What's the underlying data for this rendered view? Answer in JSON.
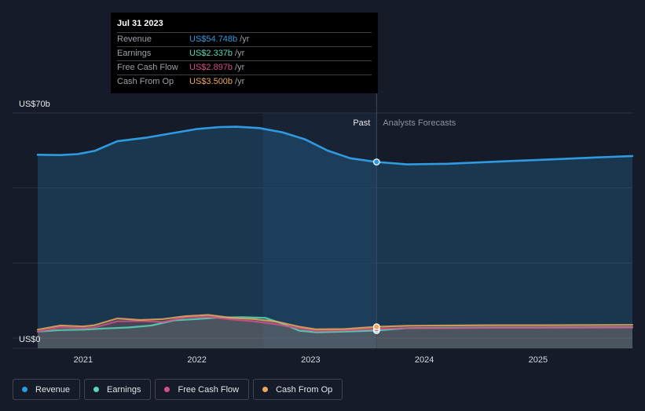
{
  "chart_data": {
    "type": "area",
    "ylabel_top": "US$70b",
    "ylabel_bottom": "US$0",
    "ylim": [
      0,
      70
    ],
    "xlim": [
      2020.6,
      2025.83
    ],
    "x_ticks": [
      {
        "value": 2021,
        "label": "2021"
      },
      {
        "value": 2022,
        "label": "2022"
      },
      {
        "value": 2023,
        "label": "2023"
      },
      {
        "value": 2024,
        "label": "2024"
      },
      {
        "value": 2025,
        "label": "2025"
      }
    ],
    "past_label": "Past",
    "forecast_label": "Analysts Forecasts",
    "past_boundary": 2023.58,
    "highlight_start": 2022.58,
    "grid": true,
    "legend_position": "bottom-left",
    "series": [
      {
        "name": "Revenue",
        "color": "#2f9ae0",
        "fill": true,
        "points": [
          [
            2020.6,
            57.0
          ],
          [
            2020.8,
            56.9
          ],
          [
            2020.95,
            57.2
          ],
          [
            2021.1,
            58.2
          ],
          [
            2021.3,
            61.2
          ],
          [
            2021.55,
            62.3
          ],
          [
            2021.8,
            63.8
          ],
          [
            2022.0,
            65.0
          ],
          [
            2022.2,
            65.6
          ],
          [
            2022.35,
            65.7
          ],
          [
            2022.55,
            65.3
          ],
          [
            2022.75,
            64.0
          ],
          [
            2022.95,
            61.8
          ],
          [
            2023.15,
            58.3
          ],
          [
            2023.35,
            55.9
          ],
          [
            2023.58,
            54.748
          ],
          [
            2023.85,
            54.0
          ],
          [
            2024.2,
            54.2
          ],
          [
            2024.6,
            54.8
          ],
          [
            2025.0,
            55.4
          ],
          [
            2025.4,
            56.0
          ],
          [
            2025.83,
            56.6
          ]
        ]
      },
      {
        "name": "Earnings",
        "color": "#56d9b5",
        "fill": false,
        "points": [
          [
            2020.6,
            2.0
          ],
          [
            2020.8,
            2.5
          ],
          [
            2021.0,
            2.6
          ],
          [
            2021.2,
            3.0
          ],
          [
            2021.4,
            3.3
          ],
          [
            2021.6,
            3.9
          ],
          [
            2021.8,
            5.5
          ],
          [
            2022.0,
            5.9
          ],
          [
            2022.2,
            6.4
          ],
          [
            2022.4,
            6.5
          ],
          [
            2022.6,
            6.3
          ],
          [
            2022.75,
            4.5
          ],
          [
            2022.9,
            2.3
          ],
          [
            2023.05,
            1.8
          ],
          [
            2023.3,
            2.0
          ],
          [
            2023.58,
            2.337
          ],
          [
            2023.85,
            3.1
          ],
          [
            2024.2,
            3.2
          ],
          [
            2024.6,
            3.3
          ],
          [
            2025.0,
            3.3
          ],
          [
            2025.83,
            3.4
          ]
        ]
      },
      {
        "name": "Free Cash Flow",
        "color": "#d64f8a",
        "fill": false,
        "points": [
          [
            2020.6,
            2.0
          ],
          [
            2020.8,
            3.3
          ],
          [
            2021.0,
            3.1
          ],
          [
            2021.1,
            3.3
          ],
          [
            2021.3,
            5.2
          ],
          [
            2021.5,
            5.3
          ],
          [
            2021.7,
            5.0
          ],
          [
            2021.9,
            6.4
          ],
          [
            2022.1,
            6.6
          ],
          [
            2022.3,
            5.8
          ],
          [
            2022.5,
            5.2
          ],
          [
            2022.7,
            4.3
          ],
          [
            2022.9,
            3.0
          ],
          [
            2023.05,
            2.2
          ],
          [
            2023.3,
            2.4
          ],
          [
            2023.58,
            2.897
          ],
          [
            2023.85,
            3.1
          ],
          [
            2024.2,
            3.1
          ],
          [
            2024.6,
            3.2
          ],
          [
            2025.0,
            3.2
          ],
          [
            2025.83,
            3.3
          ]
        ]
      },
      {
        "name": "Cash From Op",
        "color": "#eaa85a",
        "fill": false,
        "points": [
          [
            2020.6,
            2.6
          ],
          [
            2020.8,
            3.9
          ],
          [
            2021.0,
            3.6
          ],
          [
            2021.1,
            4.0
          ],
          [
            2021.3,
            6.1
          ],
          [
            2021.5,
            5.6
          ],
          [
            2021.7,
            5.9
          ],
          [
            2021.9,
            6.8
          ],
          [
            2022.1,
            7.2
          ],
          [
            2022.3,
            6.3
          ],
          [
            2022.5,
            5.9
          ],
          [
            2022.7,
            5.1
          ],
          [
            2022.9,
            3.5
          ],
          [
            2023.05,
            2.7
          ],
          [
            2023.3,
            2.8
          ],
          [
            2023.58,
            3.5
          ],
          [
            2023.85,
            3.8
          ],
          [
            2024.2,
            3.9
          ],
          [
            2024.6,
            4.0
          ],
          [
            2025.0,
            4.0
          ],
          [
            2025.83,
            4.1
          ]
        ]
      }
    ]
  },
  "tooltip": {
    "date": "Jul 31 2023",
    "rows": [
      {
        "label": "Revenue",
        "value": "US$54.748b",
        "unit": "/yr",
        "color": "#2f9ae0"
      },
      {
        "label": "Earnings",
        "value": "US$2.337b",
        "unit": "/yr",
        "color": "#56d9b5"
      },
      {
        "label": "Free Cash Flow",
        "value": "US$2.897b",
        "unit": "/yr",
        "color": "#d64f8a"
      },
      {
        "label": "Cash From Op",
        "value": "US$3.500b",
        "unit": "/yr",
        "color": "#eaa85a"
      }
    ]
  },
  "legend": [
    {
      "label": "Revenue",
      "color": "#2f9ae0"
    },
    {
      "label": "Earnings",
      "color": "#56d9b5"
    },
    {
      "label": "Free Cash Flow",
      "color": "#d64f8a"
    },
    {
      "label": "Cash From Op",
      "color": "#eaa85a"
    }
  ]
}
